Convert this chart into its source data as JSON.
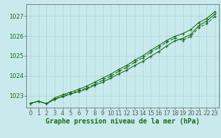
{
  "title": "Graphe pression niveau de la mer (hPa)",
  "x_labels": [
    "0",
    "1",
    "2",
    "3",
    "4",
    "5",
    "6",
    "7",
    "8",
    "9",
    "10",
    "11",
    "12",
    "13",
    "14",
    "15",
    "16",
    "17",
    "18",
    "19",
    "20",
    "21",
    "22",
    "23"
  ],
  "hours": [
    0,
    1,
    2,
    3,
    4,
    5,
    6,
    7,
    8,
    9,
    10,
    11,
    12,
    13,
    14,
    15,
    16,
    17,
    18,
    19,
    20,
    21,
    22,
    23
  ],
  "line1": [
    1022.62,
    1022.72,
    1022.6,
    1022.82,
    1022.95,
    1023.08,
    1023.2,
    1023.33,
    1023.52,
    1023.68,
    1023.88,
    1024.1,
    1024.28,
    1024.52,
    1024.72,
    1024.98,
    1025.22,
    1025.5,
    1025.75,
    1025.88,
    1026.08,
    1026.52,
    1026.75,
    1027.1
  ],
  "line2": [
    1022.62,
    1022.72,
    1022.6,
    1022.88,
    1023.05,
    1023.18,
    1023.32,
    1023.48,
    1023.68,
    1023.88,
    1024.08,
    1024.32,
    1024.52,
    1024.78,
    1025.0,
    1025.28,
    1025.52,
    1025.78,
    1025.98,
    1026.12,
    1026.32,
    1026.68,
    1026.88,
    1027.22
  ],
  "line3": [
    1022.62,
    1022.72,
    1022.6,
    1022.82,
    1022.98,
    1023.12,
    1023.25,
    1023.38,
    1023.58,
    1023.78,
    1023.98,
    1024.22,
    1024.42,
    1024.68,
    1024.9,
    1025.18,
    1025.42,
    1025.68,
    1025.9,
    1025.78,
    1025.98,
    1026.42,
    1026.62,
    1026.98
  ],
  "ylim": [
    1022.4,
    1027.6
  ],
  "yticks": [
    1023,
    1024,
    1025,
    1026,
    1027
  ],
  "line_color": "#1a6b1a",
  "bg_color": "#c8eaec",
  "grid_color": "#a8d4d6",
  "label_color": "#1a6b1a",
  "title_color": "#1a6b1a",
  "title_fontsize": 7.0,
  "tick_fontsize": 6.0
}
